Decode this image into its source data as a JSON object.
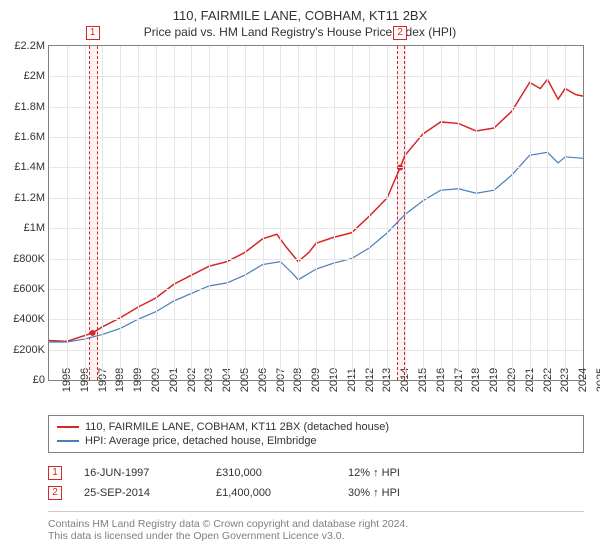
{
  "title": "110, FAIRMILE LANE, COBHAM, KT11 2BX",
  "subtitle": "Price paid vs. HM Land Registry's House Price Index (HPI)",
  "chart": {
    "type": "line",
    "background_color": "#ffffff",
    "grid_color": "#e6e6e6",
    "axis_color": "#808080",
    "x": {
      "min": 1995,
      "max": 2025,
      "ticks": [
        1995,
        1996,
        1997,
        1998,
        1999,
        2000,
        2001,
        2002,
        2003,
        2004,
        2005,
        2006,
        2007,
        2008,
        2009,
        2010,
        2011,
        2012,
        2013,
        2014,
        2015,
        2016,
        2017,
        2018,
        2019,
        2020,
        2021,
        2022,
        2023,
        2024,
        2025
      ]
    },
    "y": {
      "min": 0,
      "max": 2200000,
      "ticks": [
        0,
        200000,
        400000,
        600000,
        800000,
        1000000,
        1200000,
        1400000,
        1600000,
        1800000,
        2000000,
        2200000
      ],
      "tick_labels": [
        "£0",
        "£200K",
        "£400K",
        "£600K",
        "£800K",
        "£1M",
        "£1.2M",
        "£1.4M",
        "£1.6M",
        "£1.8M",
        "£2M",
        "£2.2M"
      ]
    },
    "series": [
      {
        "name": "110, FAIRMILE LANE, COBHAM, KT11 2BX (detached house)",
        "color": "#d62728",
        "line_width": 1.5,
        "points": [
          [
            1995,
            260000
          ],
          [
            1996,
            255000
          ],
          [
            1997.45,
            310000
          ],
          [
            1998,
            350000
          ],
          [
            1999,
            410000
          ],
          [
            2000,
            480000
          ],
          [
            2001,
            540000
          ],
          [
            2002,
            630000
          ],
          [
            2003,
            690000
          ],
          [
            2004,
            750000
          ],
          [
            2005,
            780000
          ],
          [
            2006,
            840000
          ],
          [
            2007,
            930000
          ],
          [
            2007.8,
            960000
          ],
          [
            2008.3,
            880000
          ],
          [
            2009,
            780000
          ],
          [
            2009.6,
            840000
          ],
          [
            2010,
            900000
          ],
          [
            2011,
            940000
          ],
          [
            2012,
            970000
          ],
          [
            2013,
            1080000
          ],
          [
            2014,
            1200000
          ],
          [
            2014.73,
            1400000
          ],
          [
            2015,
            1480000
          ],
          [
            2016,
            1620000
          ],
          [
            2017,
            1700000
          ],
          [
            2018,
            1690000
          ],
          [
            2019,
            1640000
          ],
          [
            2020,
            1660000
          ],
          [
            2021,
            1770000
          ],
          [
            2022,
            1960000
          ],
          [
            2022.6,
            1920000
          ],
          [
            2023,
            1980000
          ],
          [
            2023.6,
            1850000
          ],
          [
            2024,
            1920000
          ],
          [
            2024.6,
            1880000
          ],
          [
            2025,
            1870000
          ]
        ]
      },
      {
        "name": "HPI: Average price, detached house, Elmbridge",
        "color": "#4a7ebb",
        "line_width": 1.2,
        "points": [
          [
            1995,
            250000
          ],
          [
            1996,
            250000
          ],
          [
            1997,
            270000
          ],
          [
            1998,
            300000
          ],
          [
            1999,
            340000
          ],
          [
            2000,
            400000
          ],
          [
            2001,
            450000
          ],
          [
            2002,
            520000
          ],
          [
            2003,
            570000
          ],
          [
            2004,
            620000
          ],
          [
            2005,
            640000
          ],
          [
            2006,
            690000
          ],
          [
            2007,
            760000
          ],
          [
            2008,
            780000
          ],
          [
            2008.7,
            700000
          ],
          [
            2009,
            660000
          ],
          [
            2010,
            730000
          ],
          [
            2011,
            770000
          ],
          [
            2012,
            800000
          ],
          [
            2013,
            870000
          ],
          [
            2014,
            970000
          ],
          [
            2015,
            1090000
          ],
          [
            2016,
            1180000
          ],
          [
            2017,
            1250000
          ],
          [
            2018,
            1260000
          ],
          [
            2019,
            1230000
          ],
          [
            2020,
            1250000
          ],
          [
            2021,
            1350000
          ],
          [
            2022,
            1480000
          ],
          [
            2023,
            1500000
          ],
          [
            2023.6,
            1430000
          ],
          [
            2024,
            1470000
          ],
          [
            2025,
            1460000
          ]
        ]
      }
    ],
    "markers": [
      {
        "n": "1",
        "x": 1997.45,
        "color": "#d62728",
        "band_color": "rgba(214,39,40,0.06)"
      },
      {
        "n": "2",
        "x": 2014.73,
        "color": "#d62728",
        "band_color": "rgba(214,39,40,0.06)"
      }
    ]
  },
  "legend": {
    "items": [
      {
        "color": "#d62728",
        "label": "110, FAIRMILE LANE, COBHAM, KT11 2BX (detached house)"
      },
      {
        "color": "#4a7ebb",
        "label": "HPI: Average price, detached house, Elmbridge"
      }
    ]
  },
  "events": [
    {
      "n": "1",
      "color": "#d62728",
      "date": "16-JUN-1997",
      "price": "£310,000",
      "delta": "12% ↑ HPI"
    },
    {
      "n": "2",
      "color": "#d62728",
      "date": "25-SEP-2014",
      "price": "£1,400,000",
      "delta": "30% ↑ HPI"
    }
  ],
  "footer": {
    "line1": "Contains HM Land Registry data © Crown copyright and database right 2024.",
    "line2": "This data is licensed under the Open Government Licence v3.0."
  }
}
